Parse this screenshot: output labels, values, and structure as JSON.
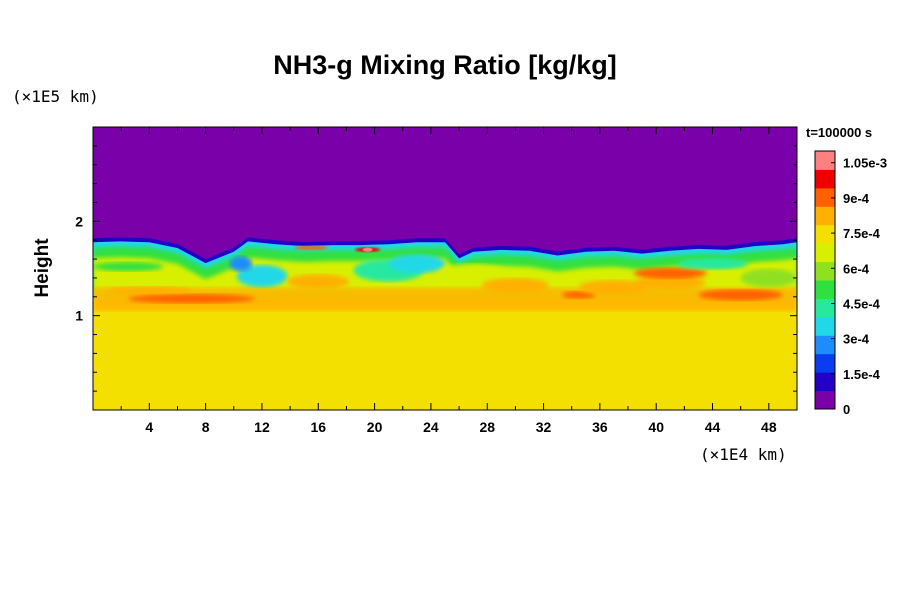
{
  "chart_data": {
    "type": "heatmap",
    "title": "NH3-g Mixing Ratio [kg/kg]",
    "ylabel": "Height",
    "x_unit": "(×1E4 km)",
    "y_unit": "(×1E5 km)",
    "time_label": "t=100000 s",
    "xlim": [
      0,
      50
    ],
    "ylim": [
      0,
      3
    ],
    "x_ticks": [
      4,
      8,
      12,
      16,
      20,
      24,
      28,
      32,
      36,
      40,
      44,
      48
    ],
    "x_tick_labels": [
      "4",
      "8",
      "12",
      "16",
      "20",
      "24",
      "28",
      "32",
      "36",
      "40",
      "44",
      "48"
    ],
    "y_ticks": [
      1,
      2
    ],
    "y_tick_labels": [
      "1",
      "2"
    ],
    "colorbar": {
      "range": [
        0,
        0.0011
      ],
      "tick_values": [
        0,
        0.00015,
        0.0003,
        0.00045,
        0.0006,
        0.00075,
        0.0009,
        0.00105
      ],
      "tick_labels": [
        "0",
        "1.5e-4",
        "3e-4",
        "4.5e-4",
        "6e-4",
        "7.5e-4",
        "9e-4",
        "1.05e-3"
      ],
      "colors": [
        "#7a00aa",
        "#2200c8",
        "#0a3cf0",
        "#1e8cff",
        "#20d8e8",
        "#28e8a0",
        "#30e040",
        "#90e020",
        "#d8f000",
        "#f4e000",
        "#ffb000",
        "#ff6000",
        "#ee0000",
        "#ff8080"
      ]
    },
    "field_summary": {
      "above_top_height": 1.8,
      "above_value": 0,
      "lower_layer_value": 0.00078,
      "lower_layer_top_height": 1.1,
      "mixed_layer_range": [
        0.0003,
        0.00095
      ],
      "peak_value": 0.00105,
      "peak_location": [
        19.5,
        1.7
      ]
    },
    "profile": {
      "x": [
        0,
        2,
        4,
        6,
        8,
        10,
        11,
        13,
        15,
        17,
        19,
        21,
        23,
        25,
        26,
        27,
        29,
        31,
        33,
        35,
        37,
        39,
        41,
        43,
        45,
        47,
        49,
        50
      ],
      "top": [
        1.82,
        1.83,
        1.82,
        1.76,
        1.6,
        1.72,
        1.83,
        1.8,
        1.78,
        1.79,
        1.79,
        1.8,
        1.82,
        1.82,
        1.65,
        1.72,
        1.74,
        1.73,
        1.68,
        1.72,
        1.73,
        1.7,
        1.73,
        1.75,
        1.74,
        1.78,
        1.8,
        1.82
      ]
    }
  }
}
